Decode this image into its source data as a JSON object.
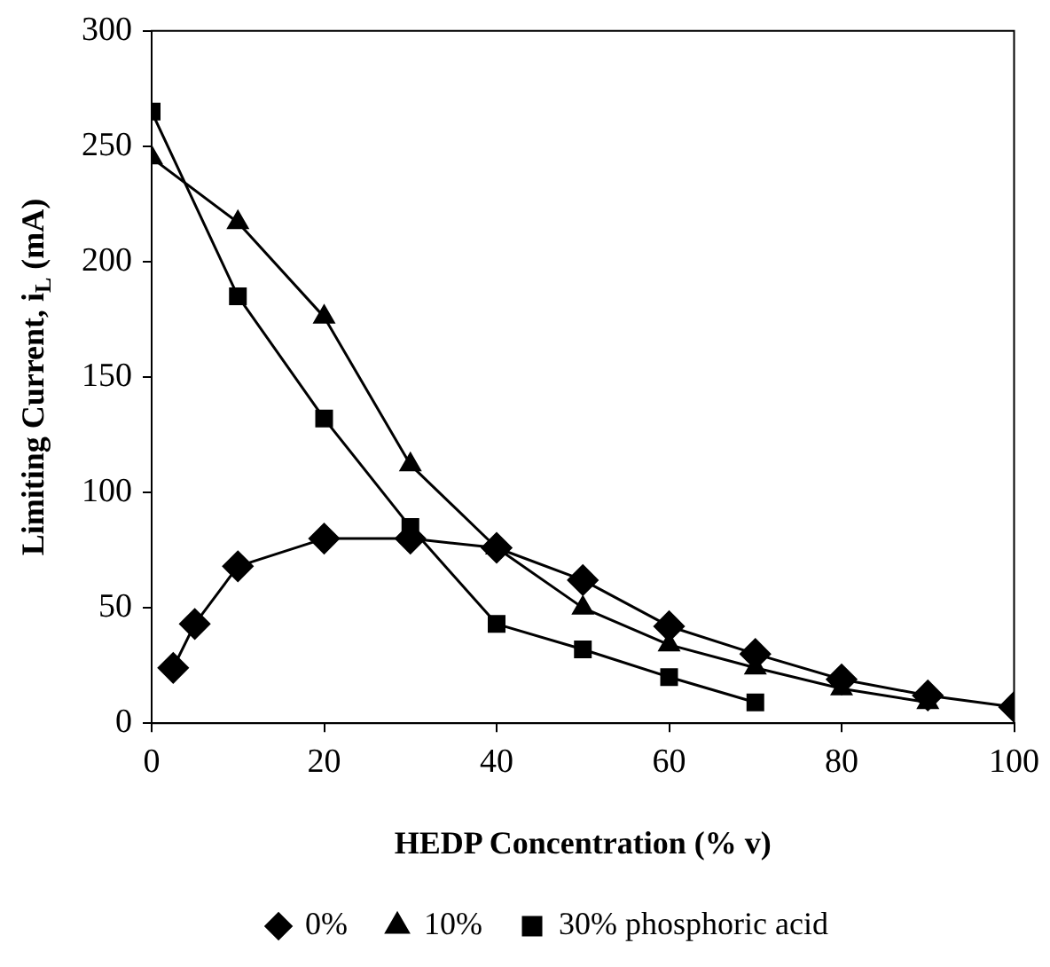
{
  "chart_data": {
    "type": "line",
    "xlabel": "HEDP Concentration (% v)",
    "ylabel": "Limiting Current, i$_{L}$ (mA)",
    "xlim": [
      0,
      100
    ],
    "xticks": [
      0,
      20,
      40,
      60,
      80,
      100
    ],
    "ylim": [
      0,
      300
    ],
    "yticks": [
      0,
      50,
      100,
      150,
      200,
      250,
      300
    ],
    "grid": false,
    "legend": "bottom",
    "line_style": "solid",
    "series": [
      {
        "name": "0%",
        "color": "#000000",
        "marker": "diamond",
        "x": [
          2.5,
          5,
          10,
          20,
          30,
          40,
          50,
          60,
          70,
          80,
          90,
          100
        ],
        "values": [
          24,
          43,
          68,
          80,
          80,
          76,
          62,
          42,
          30,
          19,
          12,
          7
        ]
      },
      {
        "name": "10%",
        "color": "#000000",
        "marker": "triangle",
        "x": [
          0,
          10,
          20,
          30,
          40,
          50,
          60,
          70,
          80,
          90
        ],
        "values": [
          245,
          217,
          176,
          112,
          76,
          50,
          34,
          24,
          15,
          9
        ]
      },
      {
        "name": "30% phosphoric acid",
        "color": "#000000",
        "marker": "square",
        "x": [
          0,
          10,
          20,
          30,
          40,
          50,
          60,
          70
        ],
        "values": [
          265,
          185,
          132,
          85,
          43,
          32,
          20,
          9
        ]
      }
    ]
  }
}
